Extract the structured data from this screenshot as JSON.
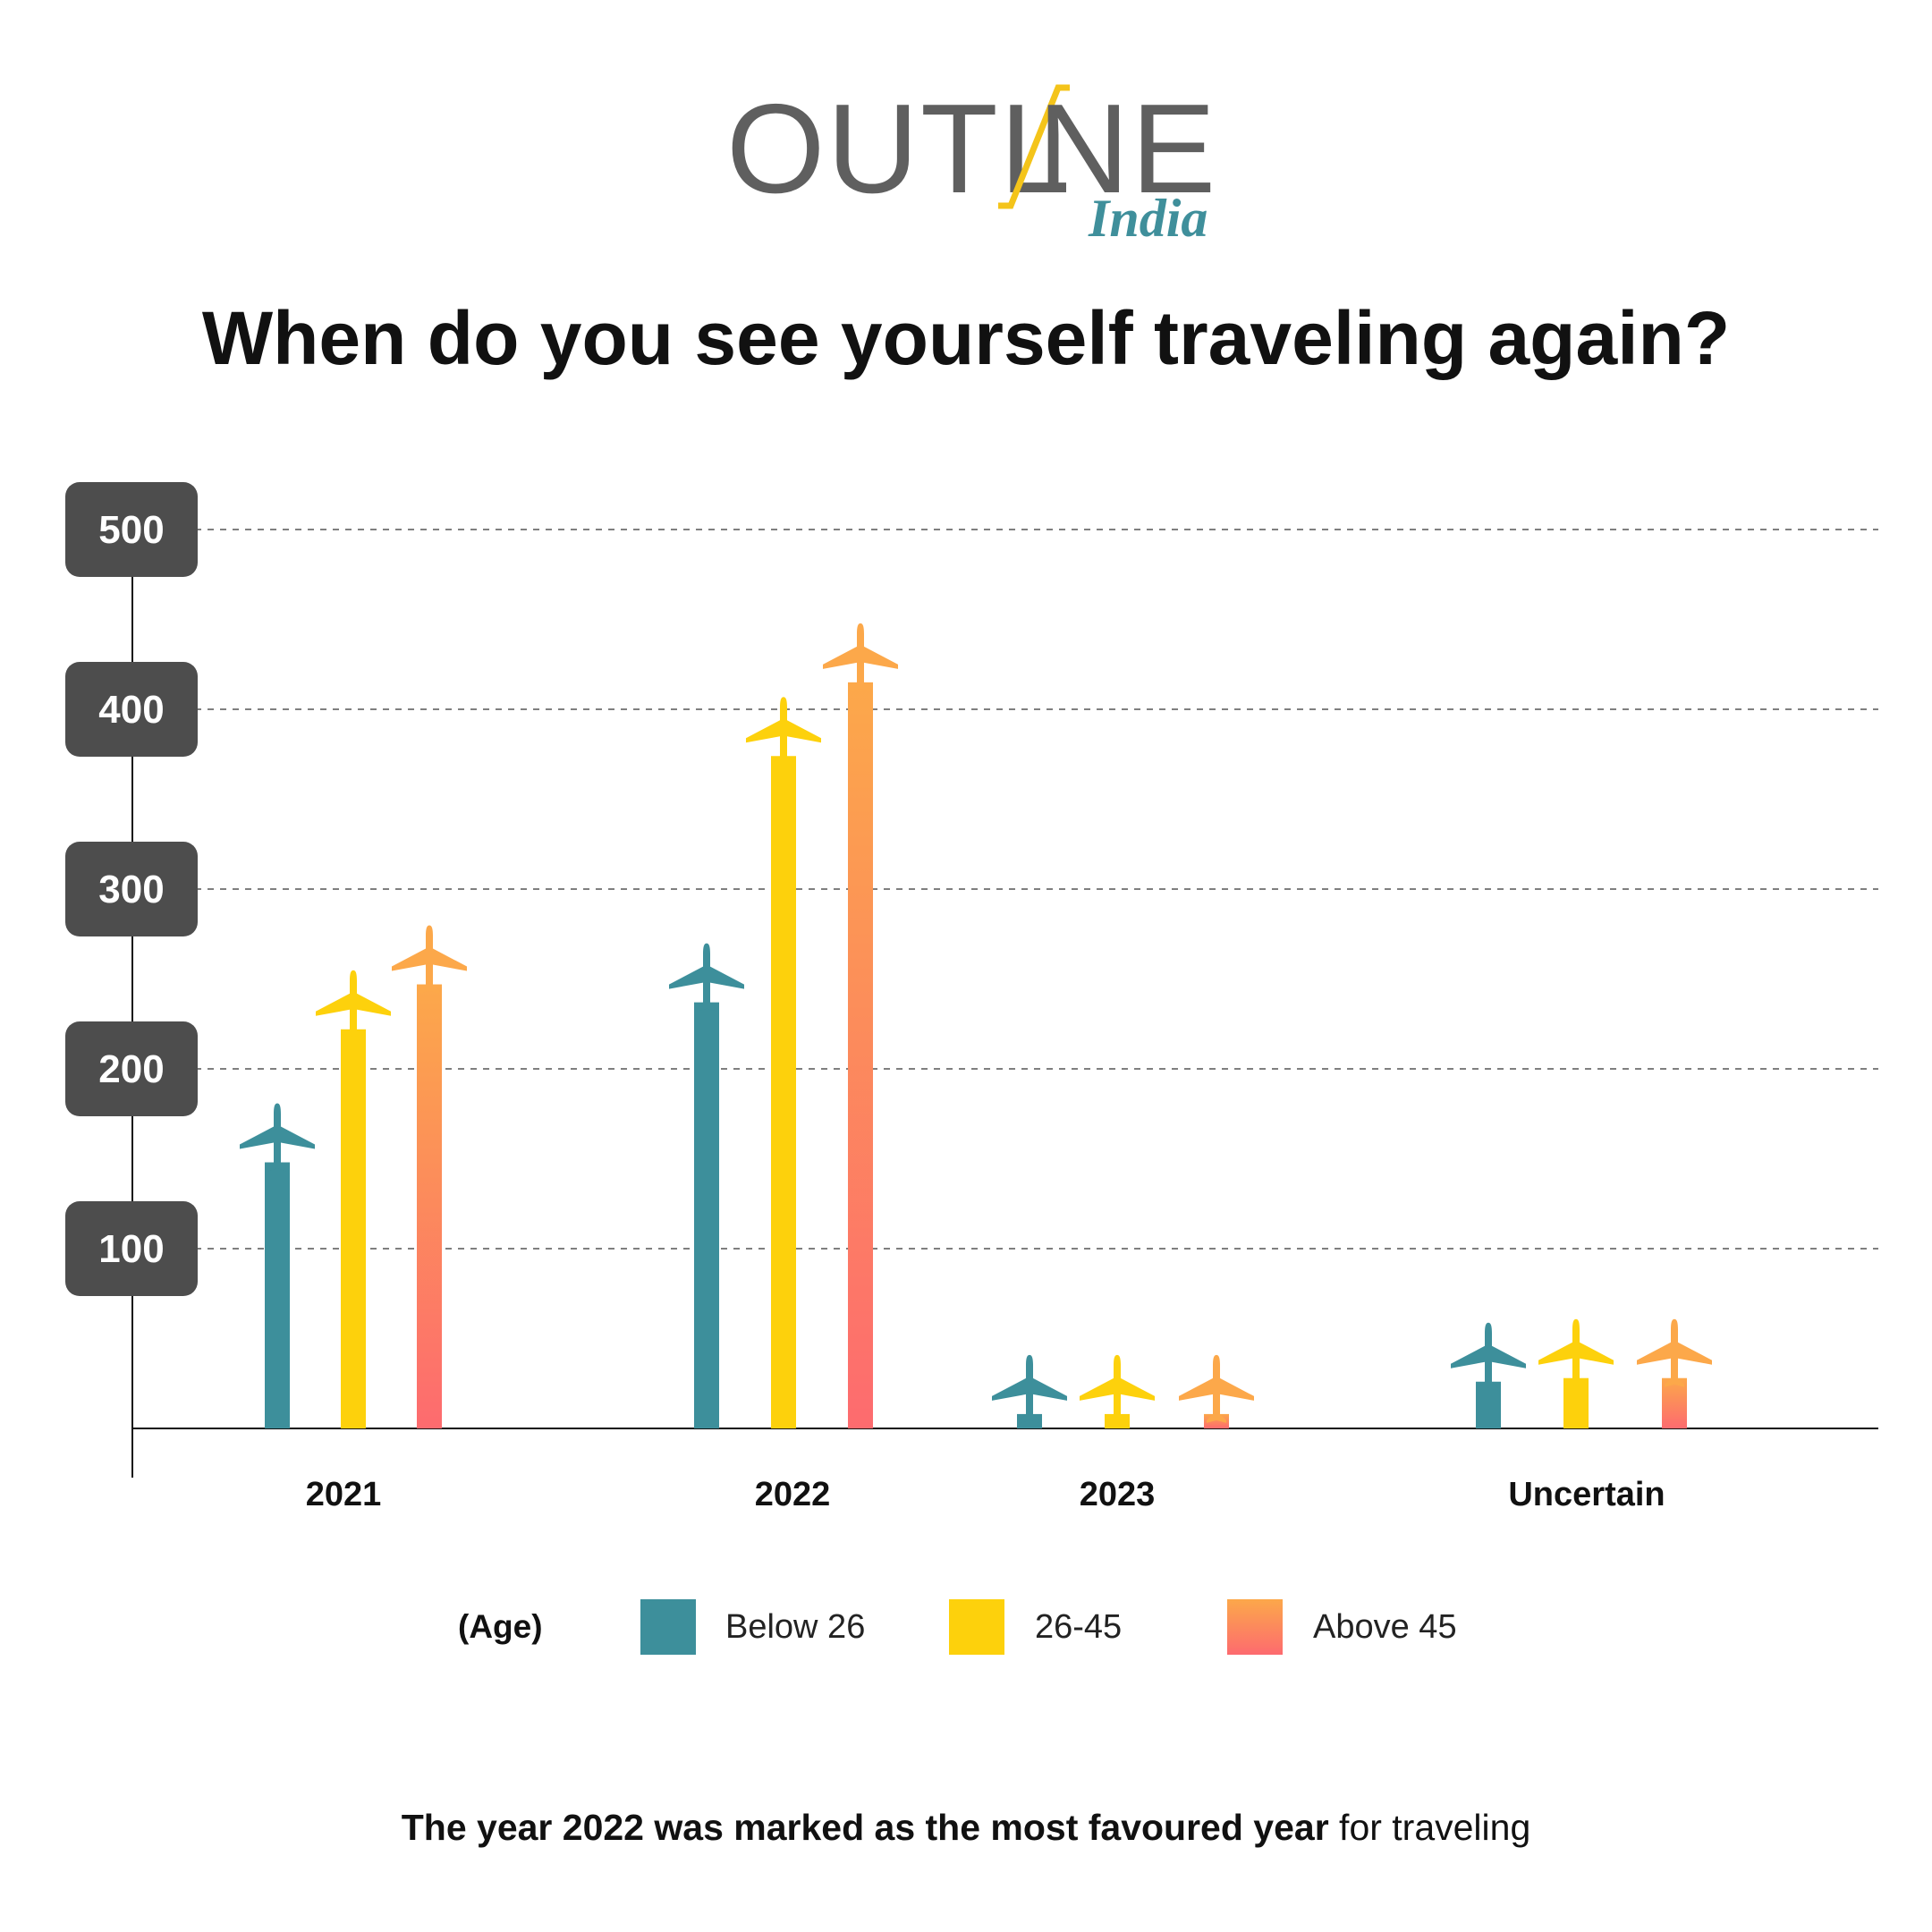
{
  "logo": {
    "word_left": "OUTL",
    "word_right": "NE",
    "sub": "India",
    "accent_color": "#f4c41a",
    "sub_color": "#3f8f9b"
  },
  "footer": {
    "bold": "The year 2022 was marked as the most favoured year",
    "normal": " for traveling"
  },
  "legend": {
    "title": "(Age)"
  },
  "colors": {
    "Below 26": "#3d8f9b",
    "26-45": "#fdd10c",
    "Above 45_top": "#fca84a",
    "Above 45_bottom": "#fd6b6f",
    "axis_badge": "#4d4d4d"
  },
  "chart_data": {
    "type": "bar",
    "title": "When do you see yourself traveling again?",
    "categories": [
      "2021",
      "2022",
      "2023",
      "Uncertain"
    ],
    "series": [
      {
        "name": "Below 26",
        "values": [
          148,
          237,
          8,
          26
        ]
      },
      {
        "name": "26-45",
        "values": [
          222,
          374,
          8,
          28
        ]
      },
      {
        "name": "Above 45",
        "values": [
          247,
          415,
          8,
          28
        ]
      }
    ],
    "yticks": [
      100,
      200,
      300,
      400,
      500
    ],
    "ylim": [
      0,
      500
    ],
    "grid": true,
    "legend_position": "bottom",
    "bar_marker": "airplane-icon"
  }
}
